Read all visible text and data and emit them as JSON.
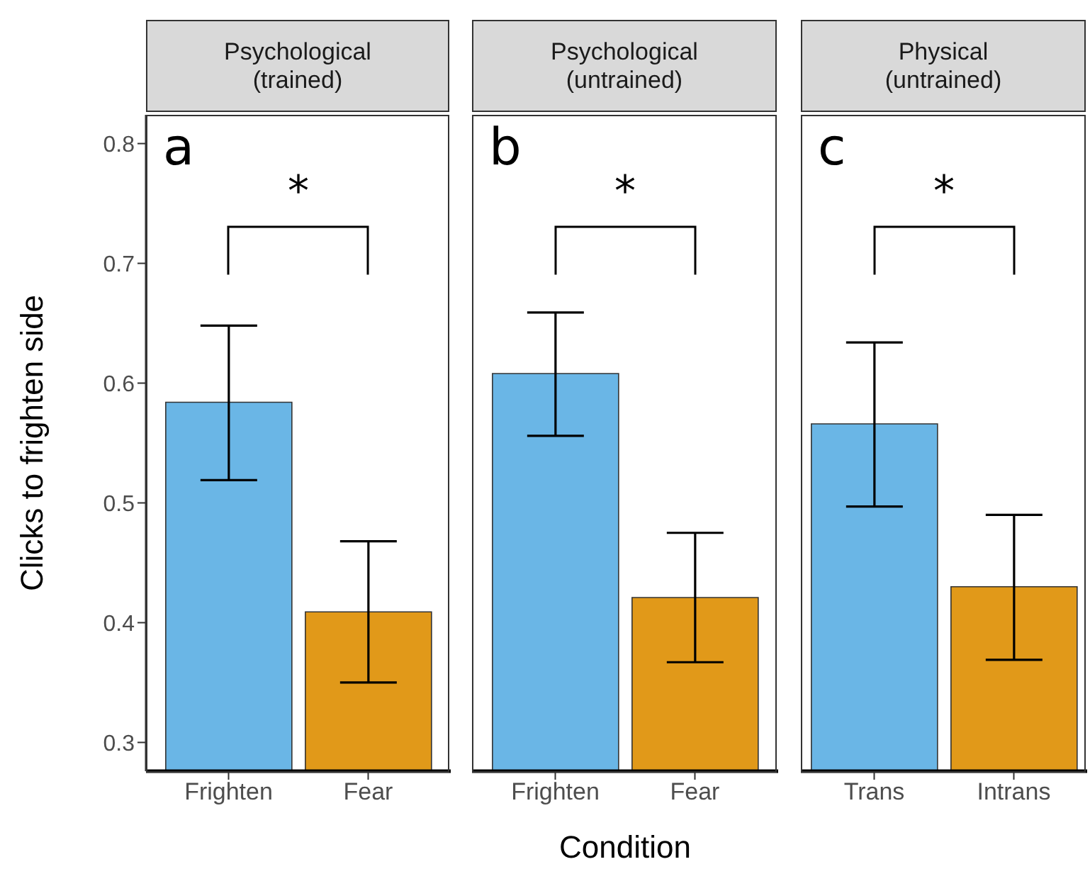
{
  "chart_data": [
    {
      "type": "bar",
      "title": "Psychological\n(trained)",
      "ylabel": "Clicks to frighten side",
      "categories": [
        "Frighten",
        "Fear"
      ],
      "values": [
        0.584,
        0.409
      ],
      "colors": [
        "#6ab6e6",
        "#e19919"
      ],
      "errors": [
        [
          0.519,
          0.648
        ],
        [
          0.35,
          0.468
        ]
      ],
      "ylim": [
        0.276,
        0.824
      ],
      "yticks": [
        0.3,
        0.4,
        0.5,
        0.6,
        0.7,
        0.8
      ],
      "annotations": [
        "a",
        "*"
      ]
    },
    {
      "type": "bar",
      "title": "Psychological\n(untrained)",
      "xlabel": "Condition",
      "categories": [
        "Frighten",
        "Fear"
      ],
      "values": [
        0.608,
        0.421
      ],
      "colors": [
        "#6ab6e6",
        "#e19919"
      ],
      "errors": [
        [
          0.556,
          0.659
        ],
        [
          0.367,
          0.475
        ]
      ],
      "ylim": [
        0.276,
        0.824
      ],
      "tick_labels": "x",
      "annotations": [
        "b",
        "*"
      ]
    },
    {
      "type": "bar",
      "title": "Physical\n(untrained)",
      "categories": [
        "Trans",
        "Intrans"
      ],
      "values": [
        0.566,
        0.43
      ],
      "colors": [
        "#6ab6e6",
        "#e19919"
      ],
      "errors": [
        [
          0.497,
          0.634
        ],
        [
          0.369,
          0.49
        ]
      ],
      "ylim": [
        0.276,
        0.824
      ],
      "tick_labels": "x",
      "annotations": [
        "c",
        "*"
      ]
    }
  ]
}
